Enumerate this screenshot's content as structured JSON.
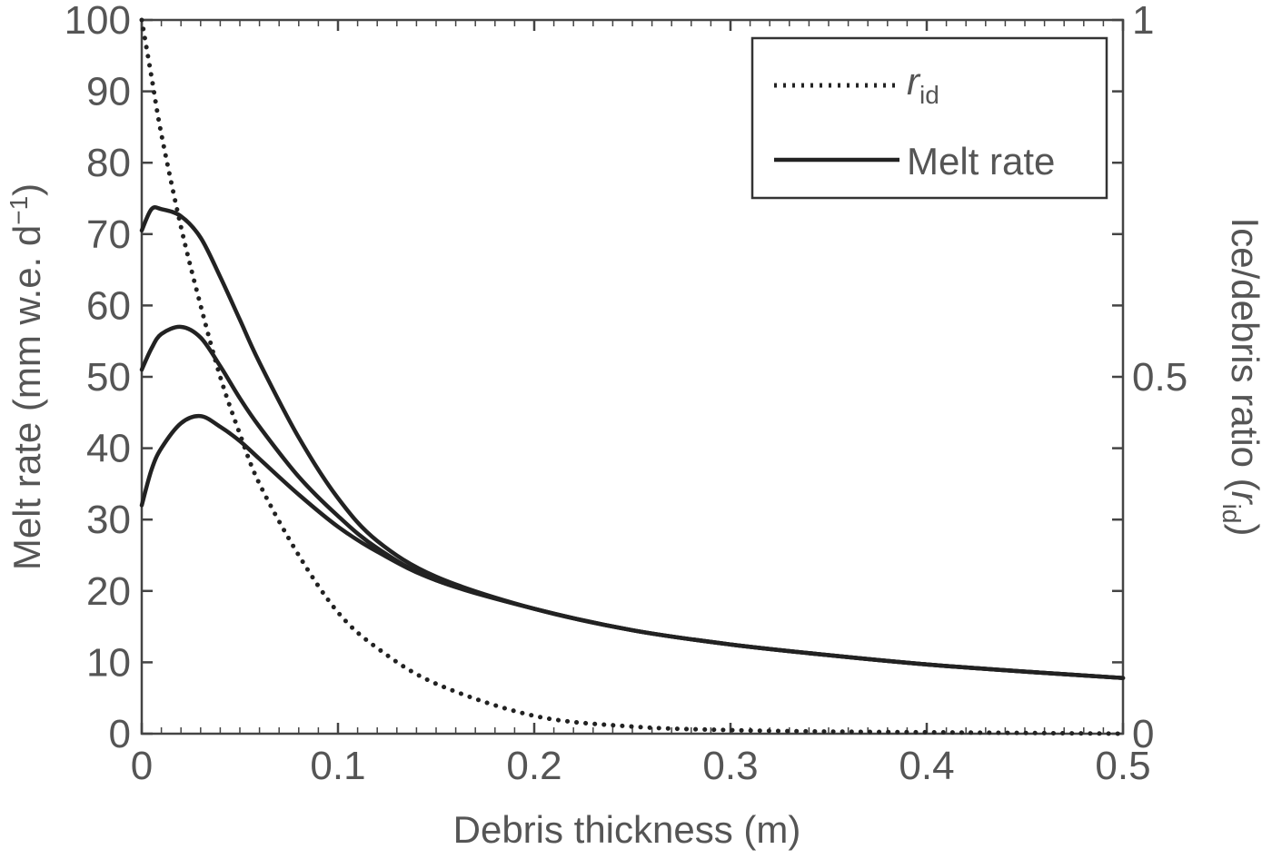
{
  "chart_data": {
    "type": "line",
    "title": "",
    "xlabel": "Debris thickness (m)",
    "ylabel": "Melt rate (mm w.e. d",
    "ylabel_sup": "−1",
    "ylabel_end": ")",
    "y2label": "Ice/debris ratio (",
    "y2label_var": "r",
    "y2label_sub": "id",
    "y2label_end": ")",
    "xlim": [
      0,
      0.5
    ],
    "ylim": [
      0,
      100
    ],
    "y2lim": [
      0,
      1
    ],
    "x_ticks": [
      "0",
      "0.1",
      "0.2",
      "0.3",
      "0.4",
      "0.5"
    ],
    "y_ticks": [
      "0",
      "10",
      "20",
      "30",
      "40",
      "50",
      "60",
      "70",
      "80",
      "90",
      "100"
    ],
    "y2_ticks": [
      "0",
      "0.5",
      "1"
    ],
    "grid": false,
    "legend": {
      "position": "top-right",
      "entries": [
        {
          "label_var": "r",
          "label_sub": "id",
          "style": "dotted"
        },
        {
          "label": "Melt rate",
          "style": "solid"
        }
      ]
    },
    "x": [
      0,
      0.005,
      0.01,
      0.02,
      0.03,
      0.04,
      0.05,
      0.06,
      0.08,
      0.1,
      0.12,
      0.15,
      0.2,
      0.25,
      0.3,
      0.35,
      0.4,
      0.45,
      0.5
    ],
    "series": [
      {
        "style": "solid",
        "axis": "left",
        "values": [
          70.5,
          73.5,
          73.5,
          72.5,
          69.5,
          64,
          58,
          52,
          41.5,
          33,
          27,
          22,
          17.5,
          14.5,
          12.5,
          11,
          9.7,
          8.7,
          7.8
        ]
      },
      {
        "style": "solid",
        "axis": "left",
        "values": [
          51,
          54,
          56,
          57,
          55.5,
          51.5,
          47,
          43,
          36,
          30.5,
          26,
          21.5,
          17.5,
          14.5,
          12.5,
          11,
          9.7,
          8.7,
          7.8
        ]
      },
      {
        "style": "solid",
        "axis": "left",
        "values": [
          32,
          37,
          40,
          43.5,
          44.5,
          43,
          41,
          38.5,
          33.5,
          29,
          25.5,
          21.5,
          17.5,
          14.5,
          12.5,
          11,
          9.7,
          8.7,
          7.8
        ]
      },
      {
        "style": "dotted",
        "axis": "right",
        "values": [
          1.0,
          0.92,
          0.84,
          0.71,
          0.6,
          0.5,
          0.42,
          0.35,
          0.25,
          0.17,
          0.12,
          0.07,
          0.025,
          0.01,
          0.005,
          0.003,
          0.002,
          0.001,
          0.0
        ]
      }
    ]
  }
}
